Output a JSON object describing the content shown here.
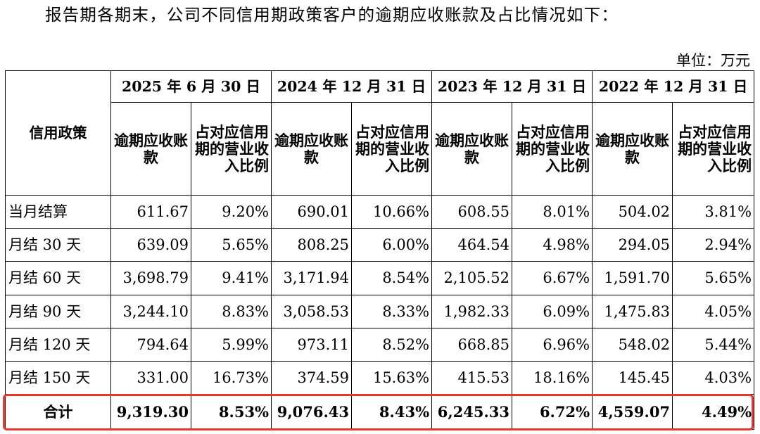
{
  "intro": "报告期各期末，公司不同信用期政策客户的逾期应收账款及占比情况如下：",
  "unit": "单位：万元",
  "table": {
    "policy_header": "信用政策",
    "periods": [
      "2025 年 6 月 30 日",
      "2024 年 12 月 31 日",
      "2023 年 12 月 31 日",
      "2022 年 12 月 31 日"
    ],
    "sub_amount": "逾期应收账款",
    "sub_ratio": "占对应信用期的营业收入比例",
    "rows": [
      {
        "policy": "当月结算",
        "v": [
          "611.67",
          "9.20%",
          "690.01",
          "10.66%",
          "608.55",
          "8.01%",
          "504.02",
          "3.81%"
        ]
      },
      {
        "policy": "月结 30 天",
        "v": [
          "639.09",
          "5.65%",
          "808.25",
          "6.00%",
          "464.54",
          "4.98%",
          "294.05",
          "2.94%"
        ]
      },
      {
        "policy": "月结 60 天",
        "v": [
          "3,698.79",
          "9.41%",
          "3,171.94",
          "8.54%",
          "2,105.52",
          "6.67%",
          "1,591.70",
          "5.65%"
        ]
      },
      {
        "policy": "月结 90 天",
        "v": [
          "3,244.10",
          "8.83%",
          "3,058.53",
          "8.33%",
          "1,982.33",
          "6.09%",
          "1,475.83",
          "4.05%"
        ]
      },
      {
        "policy": "月结 120 天",
        "v": [
          "794.64",
          "5.99%",
          "973.11",
          "8.52%",
          "668.85",
          "6.96%",
          "548.02",
          "5.44%"
        ]
      },
      {
        "policy": "月结 150 天",
        "v": [
          "331.00",
          "16.73%",
          "374.59",
          "15.63%",
          "415.53",
          "18.16%",
          "145.45",
          "4.03%"
        ]
      }
    ],
    "total": {
      "policy": "合计",
      "v": [
        "9,319.30",
        "8.53%",
        "9,076.43",
        "8.43%",
        "6,245.33",
        "6.72%",
        "4,559.07",
        "4.49%"
      ]
    }
  },
  "highlight_color": "#e8382e"
}
